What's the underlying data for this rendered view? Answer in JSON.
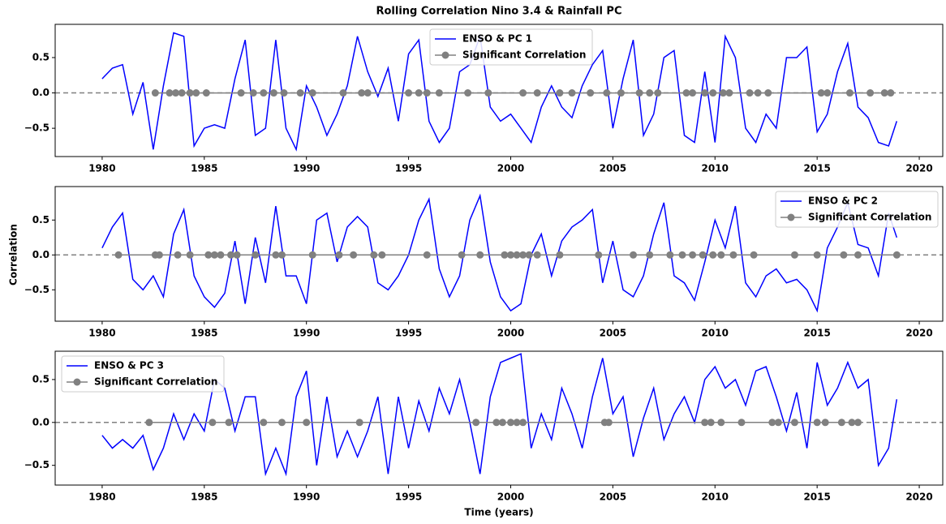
{
  "chart_data": [
    {
      "type": "line",
      "title": "Rolling Correlation Nino 3.4 & Rainfall PC",
      "legend": "upper center",
      "xlim": [
        1977.7,
        2021.15
      ],
      "xticks": [
        1980,
        1985,
        1990,
        1995,
        2000,
        2005,
        2010,
        2015,
        2020
      ],
      "ylim": [
        -0.9,
        0.97
      ],
      "yticks": [
        {
          "value": -0.5,
          "label": "−0.5"
        },
        {
          "value": 0,
          "label": "0.0"
        },
        {
          "value": 0.5,
          "label": "0.5"
        }
      ],
      "axhline": 0,
      "x": [
        1980.0,
        1980.5,
        1981.0,
        1981.5,
        1982.0,
        1982.5,
        1983.0,
        1983.5,
        1984.0,
        1984.5,
        1985.0,
        1985.5,
        1986.0,
        1986.5,
        1987.0,
        1987.5,
        1988.0,
        1988.5,
        1989.0,
        1989.5,
        1990.0,
        1990.5,
        1991.0,
        1991.5,
        1992.0,
        1992.5,
        1993.0,
        1993.5,
        1994.0,
        1994.5,
        1995.0,
        1995.5,
        1996.0,
        1996.5,
        1997.0,
        1997.5,
        1998.0,
        1998.5,
        1999.0,
        1999.5,
        2000.0,
        2000.5,
        2001.0,
        2001.5,
        2002.0,
        2002.5,
        2003.0,
        2003.5,
        2004.0,
        2004.5,
        2005.0,
        2005.5,
        2006.0,
        2006.5,
        2007.0,
        2007.5,
        2008.0,
        2008.5,
        2009.0,
        2009.5,
        2010.0,
        2010.5,
        2011.0,
        2011.5,
        2012.0,
        2012.5,
        2013.0,
        2013.5,
        2014.0,
        2014.5,
        2015.0,
        2015.5,
        2016.0,
        2016.5,
        2017.0,
        2017.5,
        2018.0,
        2018.5,
        2018.9
      ],
      "series": [
        {
          "name": "ENSO & PC 1",
          "color": "#0000ff",
          "values": [
            0.2,
            0.35,
            0.4,
            -0.3,
            0.15,
            -0.8,
            0.1,
            0.85,
            0.8,
            -0.75,
            -0.5,
            -0.45,
            -0.5,
            0.2,
            0.75,
            -0.6,
            -0.5,
            0.75,
            -0.5,
            -0.8,
            0.1,
            -0.2,
            -0.6,
            -0.3,
            0.1,
            0.8,
            0.3,
            -0.05,
            0.35,
            -0.4,
            0.55,
            0.75,
            -0.4,
            -0.7,
            -0.5,
            0.3,
            0.4,
            0.8,
            -0.2,
            -0.4,
            -0.3,
            -0.5,
            -0.7,
            -0.2,
            0.1,
            -0.2,
            -0.35,
            0.1,
            0.4,
            0.6,
            -0.5,
            0.2,
            0.75,
            -0.6,
            -0.3,
            0.5,
            0.6,
            -0.6,
            -0.7,
            0.3,
            -0.7,
            0.8,
            0.5,
            -0.5,
            -0.7,
            -0.3,
            -0.5,
            0.5,
            0.5,
            0.65,
            -0.55,
            -0.3,
            0.3,
            0.7,
            -0.2,
            -0.35,
            -0.7,
            -0.75,
            -0.4
          ]
        },
        {
          "name": "Significant Correlation",
          "color": "#808080",
          "marker": "o",
          "x": [
            1982.6,
            1983.3,
            1983.6,
            1983.9,
            1984.3,
            1984.6,
            1985.1,
            1986.8,
            1987.4,
            1987.9,
            1988.4,
            1988.9,
            1989.7,
            1990.3,
            1991.8,
            1992.7,
            1993.0,
            1995.0,
            1995.5,
            1995.9,
            1996.5,
            1997.9,
            1998.9,
            2000.6,
            2001.3,
            2002.4,
            2003.0,
            2003.9,
            2004.7,
            2005.4,
            2006.3,
            2006.8,
            2007.2,
            2008.6,
            2008.9,
            2009.5,
            2009.9,
            2010.4,
            2010.7,
            2011.7,
            2012.1,
            2012.6,
            2015.2,
            2015.5,
            2016.6,
            2017.6,
            2018.3,
            2018.6
          ],
          "values": [
            0,
            0,
            0,
            0,
            0,
            0,
            0,
            0,
            0,
            0,
            0,
            0,
            0,
            0,
            0,
            0,
            0,
            0,
            0,
            0,
            0,
            0,
            0,
            0,
            0,
            0,
            0,
            0,
            0,
            0,
            0,
            0,
            0,
            0,
            0,
            0,
            0,
            0,
            0,
            0,
            0,
            0,
            0,
            0,
            0,
            0,
            0,
            0
          ]
        }
      ]
    },
    {
      "type": "line",
      "ylabel": "Correlation",
      "legend": "upper right",
      "xlim": [
        1977.7,
        2021.15
      ],
      "xticks": [
        1980,
        1985,
        1990,
        1995,
        2000,
        2005,
        2010,
        2015,
        2020
      ],
      "ylim": [
        -0.95,
        0.98
      ],
      "yticks": [
        {
          "value": -0.5,
          "label": "−0.5"
        },
        {
          "value": 0,
          "label": "0.0"
        },
        {
          "value": 0.5,
          "label": "0.5"
        }
      ],
      "axhline": 0,
      "x": [
        1980.0,
        1980.5,
        1981.0,
        1981.5,
        1982.0,
        1982.5,
        1983.0,
        1983.5,
        1984.0,
        1984.5,
        1985.0,
        1985.5,
        1986.0,
        1986.5,
        1987.0,
        1987.5,
        1988.0,
        1988.5,
        1989.0,
        1989.5,
        1990.0,
        1990.5,
        1991.0,
        1991.5,
        1992.0,
        1992.5,
        1993.0,
        1993.5,
        1994.0,
        1994.5,
        1995.0,
        1995.5,
        1996.0,
        1996.5,
        1997.0,
        1997.5,
        1998.0,
        1998.5,
        1999.0,
        1999.5,
        2000.0,
        2000.5,
        2001.0,
        2001.5,
        2002.0,
        2002.5,
        2003.0,
        2003.5,
        2004.0,
        2004.5,
        2005.0,
        2005.5,
        2006.0,
        2006.5,
        2007.0,
        2007.5,
        2008.0,
        2008.5,
        2009.0,
        2009.5,
        2010.0,
        2010.5,
        2011.0,
        2011.5,
        2012.0,
        2012.5,
        2013.0,
        2013.5,
        2014.0,
        2014.5,
        2015.0,
        2015.5,
        2016.0,
        2016.5,
        2017.0,
        2017.5,
        2018.0,
        2018.5,
        2018.9
      ],
      "series": [
        {
          "name": "ENSO & PC 2",
          "color": "#0000ff",
          "values": [
            0.1,
            0.4,
            0.6,
            -0.35,
            -0.5,
            -0.3,
            -0.6,
            0.3,
            0.65,
            -0.3,
            -0.6,
            -0.75,
            -0.55,
            0.2,
            -0.7,
            0.25,
            -0.4,
            0.7,
            -0.3,
            -0.3,
            -0.7,
            0.5,
            0.6,
            -0.1,
            0.4,
            0.55,
            0.4,
            -0.4,
            -0.5,
            -0.3,
            0.0,
            0.5,
            0.8,
            -0.2,
            -0.6,
            -0.3,
            0.5,
            0.85,
            -0.1,
            -0.6,
            -0.8,
            -0.7,
            0.0,
            0.3,
            -0.3,
            0.2,
            0.4,
            0.5,
            0.65,
            -0.4,
            0.2,
            -0.5,
            -0.6,
            -0.3,
            0.3,
            0.75,
            -0.3,
            -0.4,
            -0.65,
            -0.1,
            0.5,
            0.1,
            0.7,
            -0.4,
            -0.6,
            -0.3,
            -0.2,
            -0.4,
            -0.35,
            -0.5,
            -0.8,
            0.1,
            0.4,
            0.75,
            0.15,
            0.1,
            -0.3,
            0.6,
            0.25
          ]
        },
        {
          "name": "Significant Correlation",
          "color": "#808080",
          "marker": "o",
          "x": [
            1980.8,
            1982.6,
            1982.8,
            1983.7,
            1984.3,
            1985.2,
            1985.5,
            1985.8,
            1986.3,
            1986.6,
            1987.5,
            1988.5,
            1988.8,
            1990.3,
            1991.6,
            1992.3,
            1993.3,
            1993.7,
            1995.9,
            1997.6,
            1998.5,
            1999.7,
            2000.0,
            2000.3,
            2000.6,
            2000.9,
            2001.3,
            2002.4,
            2004.3,
            2006.0,
            2006.8,
            2007.8,
            2008.4,
            2008.9,
            2009.4,
            2009.9,
            2010.3,
            2010.9,
            2011.9,
            2013.9,
            2015.0,
            2016.3,
            2017.0,
            2018.9
          ],
          "values": [
            0,
            0,
            0,
            0,
            0,
            0,
            0,
            0,
            0,
            0,
            0,
            0,
            0,
            0,
            0,
            0,
            0,
            0,
            0,
            0,
            0,
            0,
            0,
            0,
            0,
            0,
            0,
            0,
            0,
            0,
            0,
            0,
            0,
            0,
            0,
            0,
            0,
            0,
            0,
            0,
            0,
            0,
            0,
            0
          ]
        }
      ]
    },
    {
      "type": "line",
      "xlabel": "Time (years)",
      "legend": "upper left",
      "xlim": [
        1977.7,
        2021.15
      ],
      "xticks": [
        1980,
        1985,
        1990,
        1995,
        2000,
        2005,
        2010,
        2015,
        2020
      ],
      "ylim": [
        -0.73,
        0.83
      ],
      "yticks": [
        {
          "value": -0.5,
          "label": "−0.5"
        },
        {
          "value": 0,
          "label": "0.0"
        },
        {
          "value": 0.5,
          "label": "0.5"
        }
      ],
      "axhline": 0,
      "x": [
        1980.0,
        1980.5,
        1981.0,
        1981.5,
        1982.0,
        1982.5,
        1983.0,
        1983.5,
        1984.0,
        1984.5,
        1985.0,
        1985.5,
        1986.0,
        1986.5,
        1987.0,
        1987.5,
        1988.0,
        1988.5,
        1989.0,
        1989.5,
        1990.0,
        1990.5,
        1991.0,
        1991.5,
        1992.0,
        1992.5,
        1993.0,
        1993.5,
        1994.0,
        1994.5,
        1995.0,
        1995.5,
        1996.0,
        1996.5,
        1997.0,
        1997.5,
        1998.0,
        1998.5,
        1999.0,
        1999.5,
        2000.0,
        2000.5,
        2001.0,
        2001.5,
        2002.0,
        2002.5,
        2003.0,
        2003.5,
        2004.0,
        2004.5,
        2005.0,
        2005.5,
        2006.0,
        2006.5,
        2007.0,
        2007.5,
        2008.0,
        2008.5,
        2009.0,
        2009.5,
        2010.0,
        2010.5,
        2011.0,
        2011.5,
        2012.0,
        2012.5,
        2013.0,
        2013.5,
        2014.0,
        2014.5,
        2015.0,
        2015.5,
        2016.0,
        2016.5,
        2017.0,
        2017.5,
        2018.0,
        2018.5,
        2018.9
      ],
      "series": [
        {
          "name": "ENSO & PC 3",
          "color": "#0000ff",
          "values": [
            -0.15,
            -0.3,
            -0.2,
            -0.3,
            -0.15,
            -0.55,
            -0.3,
            0.1,
            -0.2,
            0.1,
            -0.1,
            0.5,
            0.4,
            -0.1,
            0.3,
            0.3,
            -0.6,
            -0.3,
            -0.6,
            0.3,
            0.6,
            -0.5,
            0.3,
            -0.4,
            -0.1,
            -0.4,
            -0.1,
            0.3,
            -0.6,
            0.3,
            -0.3,
            0.25,
            -0.1,
            0.4,
            0.1,
            0.5,
            0.0,
            -0.6,
            0.3,
            0.7,
            0.75,
            0.8,
            -0.3,
            0.1,
            -0.2,
            0.4,
            0.1,
            -0.3,
            0.3,
            0.75,
            0.1,
            0.3,
            -0.4,
            0.05,
            0.4,
            -0.2,
            0.1,
            0.3,
            0.0,
            0.5,
            0.65,
            0.4,
            0.5,
            0.2,
            0.6,
            0.65,
            0.3,
            -0.1,
            0.35,
            -0.3,
            0.7,
            0.2,
            0.4,
            0.7,
            0.4,
            0.5,
            -0.5,
            -0.3,
            0.27
          ]
        },
        {
          "name": "Significant Correlation",
          "color": "#808080",
          "marker": "o",
          "x": [
            1982.3,
            1985.4,
            1986.2,
            1987.9,
            1988.8,
            1990.0,
            1992.6,
            1998.3,
            1999.3,
            1999.6,
            2000.0,
            2000.3,
            2000.6,
            2004.6,
            2004.8,
            2009.5,
            2009.8,
            2010.3,
            2011.3,
            2012.8,
            2013.1,
            2013.9,
            2015.0,
            2015.4,
            2016.2,
            2016.7,
            2017.0
          ],
          "values": [
            0,
            0,
            0,
            0,
            0,
            0,
            0,
            0,
            0,
            0,
            0,
            0,
            0,
            0,
            0,
            0,
            0,
            0,
            0,
            0,
            0,
            0,
            0,
            0,
            0,
            0,
            0
          ]
        }
      ]
    }
  ]
}
